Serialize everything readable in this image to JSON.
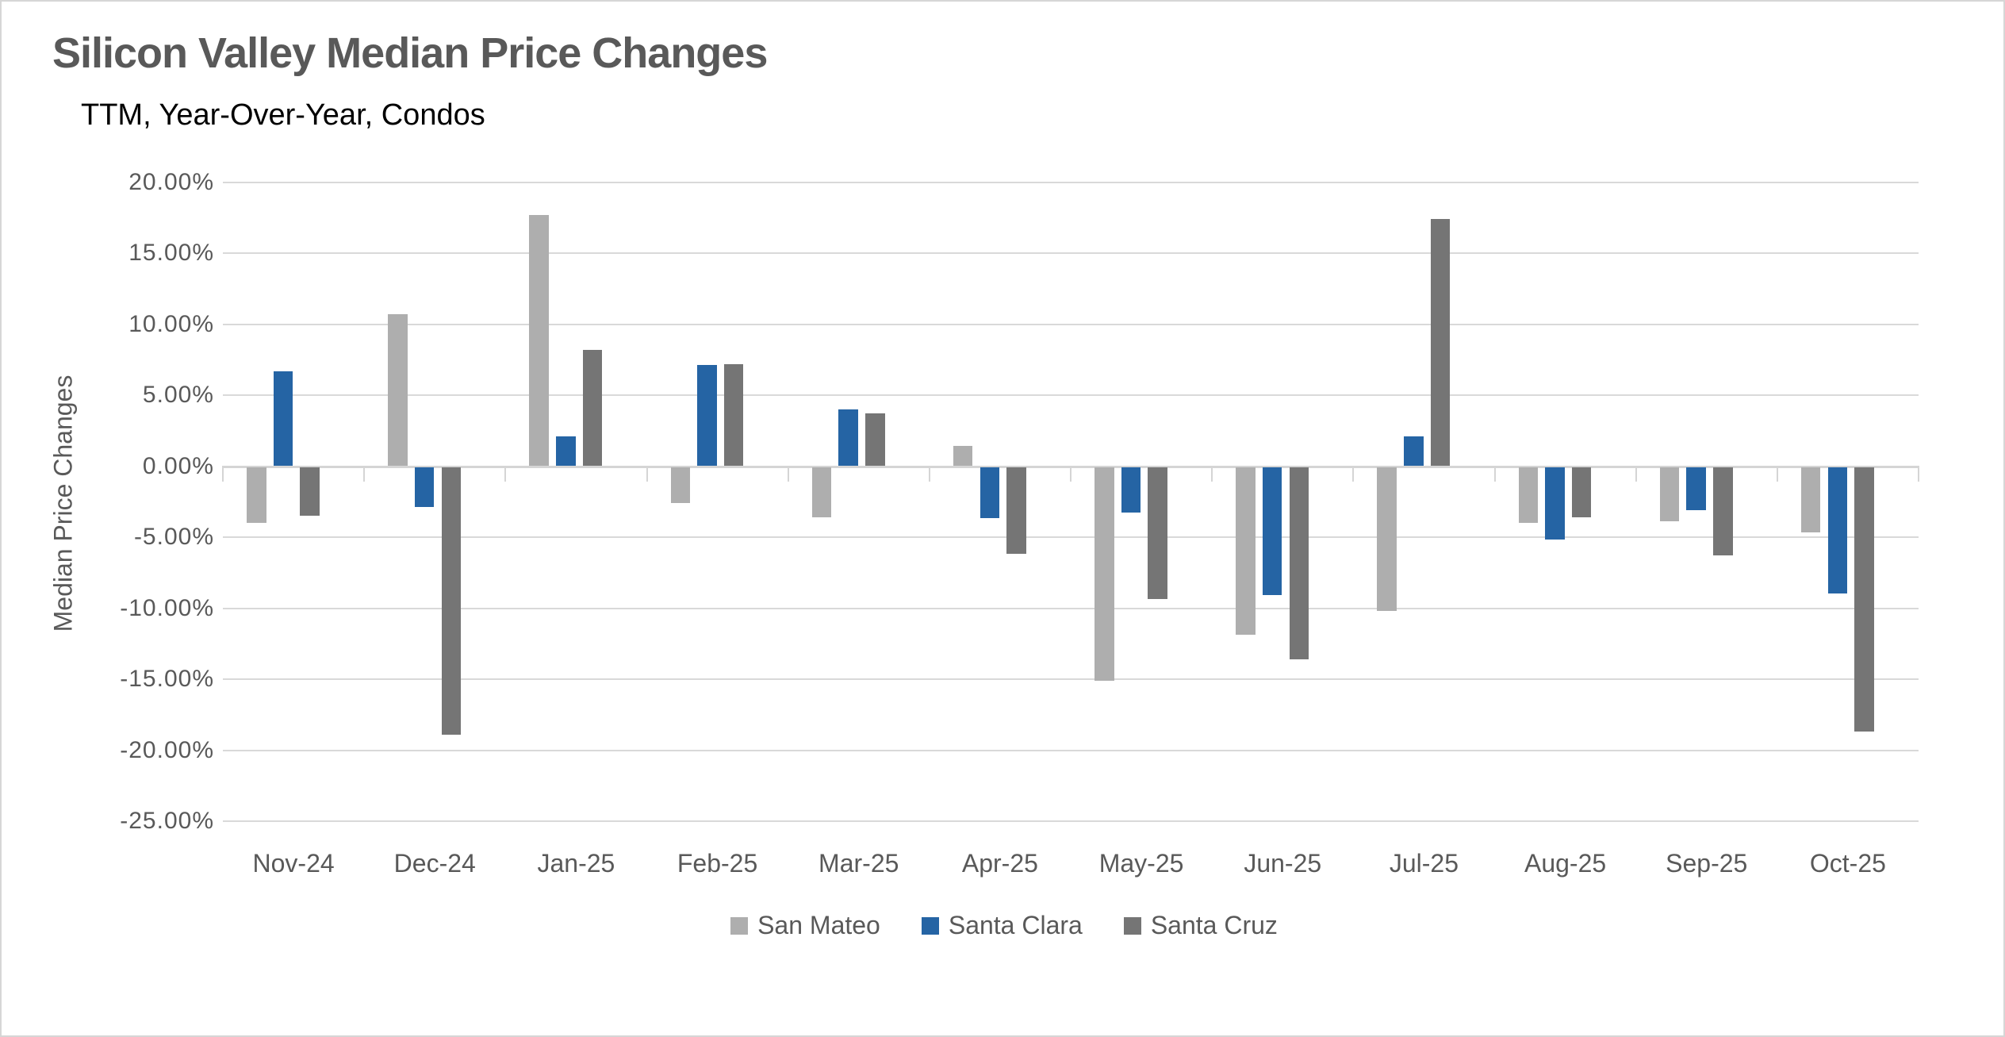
{
  "title": "Silicon Valley Median Price Changes",
  "subtitle": "TTM, Year-Over-Year, Condos",
  "y_axis_title": "Median Price Changes",
  "colors": {
    "san_mateo": "#AEAEAE",
    "santa_clara": "#2564A4",
    "santa_cruz": "#757575",
    "gridline": "#D9D9D9",
    "axis_text": "#595959",
    "title_text": "#595959",
    "subtitle_text": "#000000"
  },
  "chart_data": {
    "type": "bar",
    "title": "Silicon Valley Median Price Changes",
    "subtitle": "TTM, Year-Over-Year, Condos",
    "xlabel": "",
    "ylabel": "Median Price Changes",
    "ylim": [
      -25,
      20
    ],
    "ytick_step": 5,
    "grid": true,
    "legend_position": "bottom",
    "ytick_labels": [
      "20.00%",
      "15.00%",
      "10.00%",
      "5.00%",
      "0.00%",
      "-5.00%",
      "-10.00%",
      "-15.00%",
      "-20.00%",
      "-25.00%"
    ],
    "categories": [
      "Nov-24",
      "Dec-24",
      "Jan-25",
      "Feb-25",
      "Mar-25",
      "Apr-25",
      "May-25",
      "Jun-25",
      "Jul-25",
      "Aug-25",
      "Sep-25",
      "Oct-25"
    ],
    "series": [
      {
        "name": "San Mateo",
        "color": "#AEAEAE",
        "values": [
          -3.9,
          10.7,
          17.7,
          -2.5,
          -3.5,
          1.4,
          -15.0,
          -11.8,
          -10.1,
          -3.9,
          -3.8,
          -4.6
        ]
      },
      {
        "name": "Santa Clara",
        "color": "#2564A4",
        "values": [
          6.7,
          -2.8,
          2.1,
          7.1,
          4.0,
          -3.6,
          -3.2,
          -9.0,
          2.1,
          -5.1,
          -3.0,
          -8.9
        ]
      },
      {
        "name": "Santa Cruz",
        "color": "#757575",
        "values": [
          -3.4,
          -18.8,
          8.2,
          7.2,
          3.7,
          -6.1,
          -9.3,
          -13.5,
          17.4,
          -3.5,
          -6.2,
          -18.6
        ]
      }
    ]
  }
}
